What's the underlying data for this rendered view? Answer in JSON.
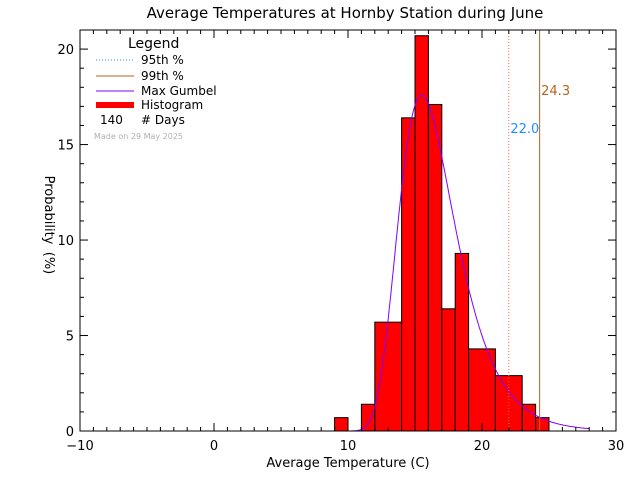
{
  "chart_data": {
    "type": "bar",
    "title": "Average Temperatures at Hornby Station during June",
    "xlabel": "Average Temperature (C)",
    "ylabel_top": "Probability",
    "ylabel_bottom": "(%)",
    "xlim": [
      -10,
      30
    ],
    "ylim": [
      0,
      21
    ],
    "xticks": [
      -10,
      0,
      10,
      20,
      30
    ],
    "yticks": [
      0,
      5,
      10,
      15,
      20
    ],
    "x_minor_step": 1,
    "y_minor_step": 1,
    "bin_width": 1,
    "histogram": {
      "bin_left": [
        9,
        11,
        12,
        14,
        15,
        16,
        17,
        18,
        19,
        21,
        23,
        24
      ],
      "values": [
        0.7,
        1.4,
        5.7,
        16.4,
        20.7,
        17.1,
        6.4,
        9.3,
        4.3,
        2.9,
        1.4,
        0.7
      ],
      "bin_width_per_bar": [
        1,
        1,
        2,
        1,
        1,
        1,
        1,
        1,
        2,
        2,
        1,
        1
      ],
      "color": "#ff0000"
    },
    "gumbel": {
      "color": "#8000ff",
      "mode": 15.5,
      "scale": 2.1,
      "peak": 17.6,
      "x_start": 9,
      "x_end": 28
    },
    "percentile_95": {
      "value": 22.0,
      "label": "22.0",
      "color": "#ff6a3d",
      "label_color": "#1e90ff"
    },
    "percentile_99": {
      "value": 24.3,
      "label": "24.3",
      "color": "#b5651d",
      "label_color": "#b5651d"
    },
    "legend": {
      "title": "Legend",
      "items": [
        "95th %",
        "99th %",
        "Max Gumbel",
        "Histogram"
      ],
      "days_count": "140",
      "days_label": "# Days",
      "placement": "top-left"
    },
    "note": "Made on 29 May 2025"
  }
}
